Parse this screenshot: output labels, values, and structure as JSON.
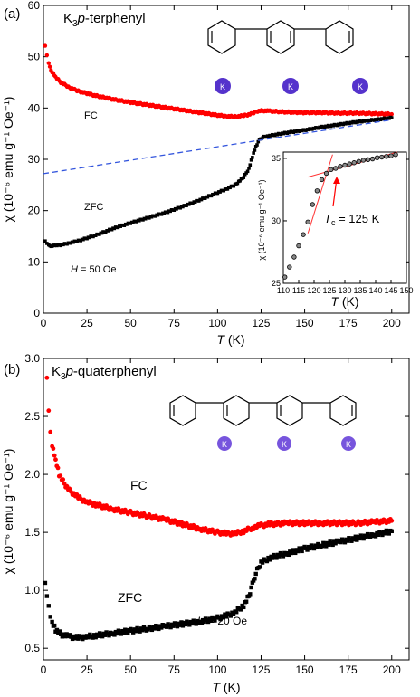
{
  "chart_data": [
    {
      "type": "scatter",
      "panel_label": "(a)",
      "title_main": "K",
      "title_sub": "3",
      "title_rest": "p-terphenyl",
      "ylabel": "χ (10⁻⁶ emu g⁻¹ Oe⁻¹)",
      "xlabel_italic": "T",
      "xlabel_unit": " (K)",
      "xlim": [
        0,
        210
      ],
      "ylim": [
        0,
        60
      ],
      "xticks": [
        "0",
        "25",
        "50",
        "75",
        "100",
        "125",
        "150",
        "175",
        "200"
      ],
      "yticks": [
        "0",
        "10",
        "20",
        "30",
        "40",
        "50",
        "60"
      ],
      "series": [
        {
          "name": "FC",
          "color": "#ff0000",
          "x": [
            1,
            2,
            3,
            5,
            7,
            10,
            15,
            20,
            30,
            40,
            50,
            60,
            70,
            80,
            90,
            100,
            105,
            110,
            115,
            120,
            123,
            126,
            130,
            140,
            150,
            160,
            170,
            180,
            190,
            200
          ],
          "y": [
            52.3,
            50.3,
            48.6,
            47.0,
            46.0,
            45.0,
            44.0,
            43.3,
            42.4,
            41.7,
            41.1,
            40.6,
            40.1,
            39.6,
            39.1,
            38.6,
            38.4,
            38.3,
            38.5,
            38.9,
            39.4,
            39.5,
            39.4,
            39.2,
            39.1,
            39.1,
            39.0,
            39.0,
            38.9,
            38.8
          ]
        },
        {
          "name": "ZFC",
          "color": "#000000",
          "x": [
            1,
            2,
            3,
            5,
            7,
            10,
            15,
            20,
            30,
            40,
            50,
            60,
            70,
            80,
            90,
            100,
            105,
            110,
            115,
            118,
            120,
            122,
            124,
            126,
            130,
            140,
            150,
            160,
            170,
            180,
            190,
            200
          ],
          "y": [
            14.2,
            13.6,
            13.2,
            13.1,
            13.2,
            13.3,
            13.7,
            14.1,
            15.2,
            16.5,
            17.6,
            18.6,
            19.6,
            20.8,
            22.1,
            23.5,
            24.2,
            25.0,
            26.5,
            28.2,
            30.5,
            32.5,
            33.8,
            34.3,
            34.6,
            35.2,
            35.7,
            36.3,
            36.8,
            37.3,
            37.7,
            38.1
          ]
        }
      ],
      "dashed_line": {
        "color": "#3355dd",
        "x": [
          0,
          200
        ],
        "y": [
          27.2,
          37.7
        ]
      },
      "labels": {
        "fc": "FC",
        "zfc": "ZFC",
        "field_italic": "H",
        "field_rest": " = 50 Oe",
        "k": "K"
      },
      "inset": {
        "xlim": [
          110,
          150
        ],
        "ylim": [
          25,
          35.5
        ],
        "xticks": [
          "110",
          "115",
          "120",
          "125",
          "130",
          "135",
          "140",
          "145",
          "150"
        ],
        "yticks": [
          "25",
          "30",
          "35"
        ],
        "xlabel_italic": "T",
        "xlabel_unit": " (K)",
        "ylabel": "χ (10⁻⁶ emu g⁻¹ Oe⁻¹)",
        "tc_italic": "T",
        "tc_sub": "c",
        "tc_rest": " = 125 K",
        "points_x": [
          110.5,
          112,
          113.5,
          115,
          116.5,
          118,
          119.5,
          121,
          122.5,
          124,
          125.5,
          127,
          128.5,
          130,
          131.5,
          133,
          134.5,
          136,
          137.5,
          139,
          140.5,
          142,
          143.5,
          145,
          146.5
        ],
        "points_y": [
          25.5,
          26.3,
          27.1,
          28.0,
          28.9,
          29.9,
          31.3,
          32.4,
          33.3,
          33.8,
          34.1,
          34.2,
          34.35,
          34.45,
          34.55,
          34.65,
          34.75,
          34.85,
          34.9,
          34.95,
          35.05,
          35.1,
          35.15,
          35.2,
          35.3
        ],
        "fit_line1": {
          "x": [
            118,
            126
          ],
          "y": [
            29.0,
            35.3
          ]
        },
        "fit_line2": {
          "x": [
            118,
            147
          ],
          "y": [
            33.5,
            35.5
          ]
        },
        "arrow_color": "#ff0000"
      }
    },
    {
      "type": "scatter",
      "panel_label": "(b)",
      "title_main": "K",
      "title_sub": "3",
      "title_rest": "p-quaterphenyl",
      "ylabel": "χ (10⁻⁶ emu g⁻¹ Oe⁻¹)",
      "xlabel_italic": "T",
      "xlabel_unit": " (K)",
      "xlim": [
        0,
        210
      ],
      "ylim": [
        0.4,
        3.0
      ],
      "xticks": [
        "0",
        "25",
        "50",
        "75",
        "100",
        "125",
        "150",
        "175",
        "200"
      ],
      "yticks": [
        "0.5",
        "1.0",
        "1.5",
        "2.0",
        "2.5",
        "3.0"
      ],
      "series": [
        {
          "name": "FC",
          "color": "#ff0000",
          "x": [
            2,
            3,
            4,
            5,
            7,
            9,
            12,
            15,
            20,
            25,
            30,
            40,
            50,
            60,
            70,
            80,
            90,
            100,
            105,
            110,
            115,
            120,
            125,
            130,
            140,
            150,
            160,
            170,
            180,
            190,
            200
          ],
          "y": [
            2.85,
            2.55,
            2.35,
            2.25,
            2.12,
            2.0,
            1.92,
            1.86,
            1.8,
            1.76,
            1.74,
            1.7,
            1.67,
            1.64,
            1.61,
            1.57,
            1.53,
            1.5,
            1.49,
            1.49,
            1.51,
            1.54,
            1.56,
            1.57,
            1.58,
            1.58,
            1.58,
            1.58,
            1.58,
            1.59,
            1.6
          ]
        },
        {
          "name": "ZFC",
          "color": "#000000",
          "x": [
            1,
            2,
            3,
            4,
            5,
            7,
            10,
            15,
            20,
            25,
            30,
            40,
            50,
            60,
            70,
            80,
            90,
            100,
            105,
            110,
            115,
            118,
            120,
            122,
            125,
            130,
            140,
            150,
            160,
            170,
            180,
            190,
            200
          ],
          "y": [
            1.08,
            0.95,
            0.85,
            0.78,
            0.72,
            0.66,
            0.62,
            0.6,
            0.59,
            0.6,
            0.61,
            0.63,
            0.65,
            0.67,
            0.69,
            0.71,
            0.73,
            0.76,
            0.78,
            0.81,
            0.87,
            0.95,
            1.05,
            1.15,
            1.24,
            1.28,
            1.32,
            1.36,
            1.39,
            1.42,
            1.45,
            1.48,
            1.51
          ]
        }
      ],
      "labels": {
        "fc": "FC",
        "zfc": "ZFC",
        "field_italic": "H",
        "field_rest": " = 20 Oe",
        "k": "K"
      }
    }
  ]
}
